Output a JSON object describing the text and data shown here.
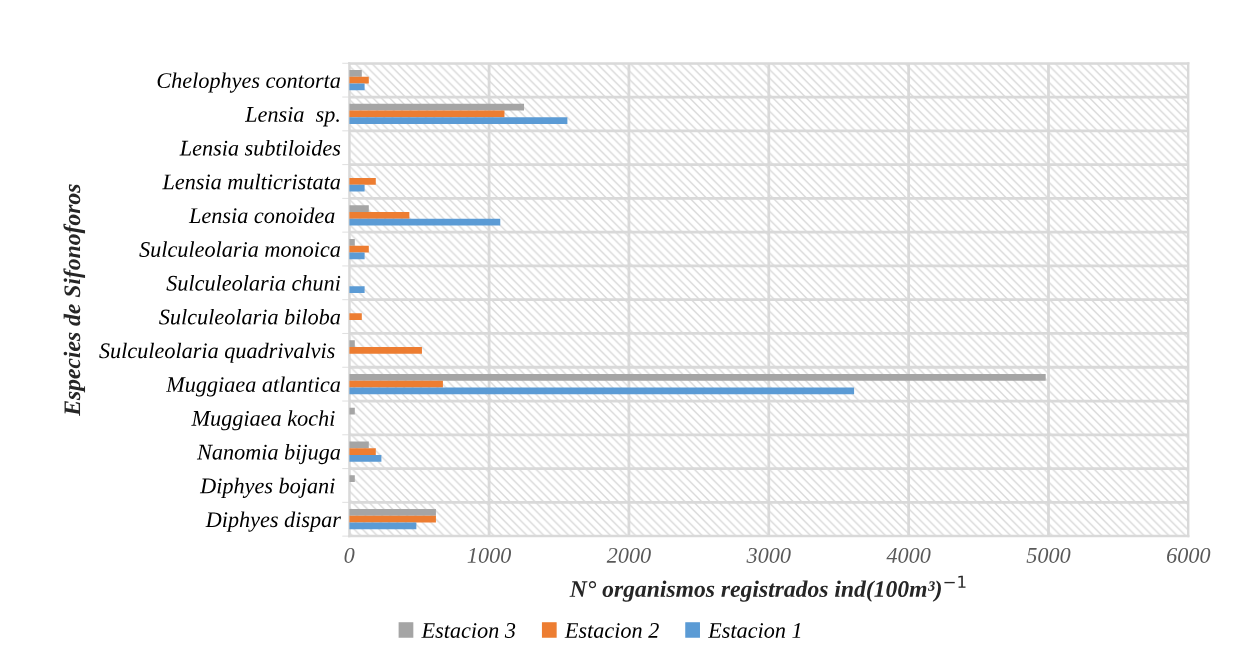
{
  "chart_data": {
    "type": "bar",
    "orientation": "horizontal",
    "xlabel": "N° organismos registrados ind(100m³)$^{−1}$",
    "ylabel": "Especies de Sifonoforos",
    "categories": [
      "Chelophyes contorta",
      "Lensia  sp.",
      "Lensia subtiloides",
      "Lensia multicristata",
      "Lensia conoidea ",
      "Sulculeolaria monoica",
      "Sulculeolaria chuni",
      "Sulculeolaria biloba",
      "Sulculeolaria quadrivalvis ",
      "Muggiaea atlantica",
      "Muggiaea kochi ",
      "Nanomia bijuga",
      "Diphyes bojani ",
      "Diphyes dispar"
    ],
    "series": [
      {
        "name": "Estacion 3",
        "color": "#a5a5a5",
        "values": [
          90,
          1250,
          0,
          0,
          140,
          40,
          0,
          0,
          40,
          4980,
          40,
          140,
          40,
          620
        ]
      },
      {
        "name": "Estacion 2",
        "color": "#ed7d31",
        "values": [
          140,
          1110,
          0,
          190,
          430,
          140,
          0,
          90,
          520,
          670,
          0,
          190,
          0,
          620
        ]
      },
      {
        "name": "Estacion 1",
        "color": "#5b9bd5",
        "values": [
          110,
          1560,
          0,
          110,
          1080,
          110,
          110,
          0,
          0,
          3610,
          0,
          230,
          0,
          480
        ]
      }
    ],
    "xlim": [
      0,
      6000
    ],
    "xticks": [
      0,
      1000,
      2000,
      3000,
      4000,
      5000,
      6000
    ],
    "grid": true,
    "legend": "bottom"
  }
}
